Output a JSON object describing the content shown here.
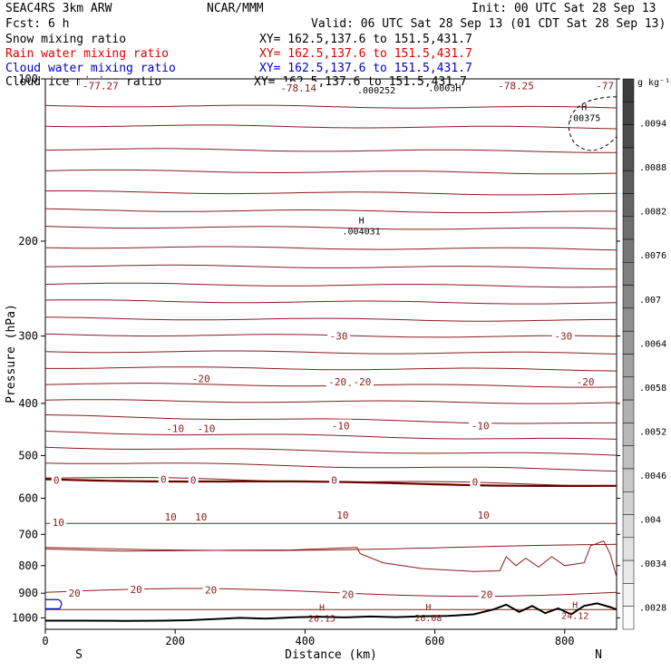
{
  "header": {
    "model": "SEAC4RS   3km ARW",
    "forecast": "Fcst:    6 h",
    "center": "NCAR/MMM",
    "init": "Init: 00 UTC Sat 28 Sep 13",
    "valid": "Valid: 06 UTC Sat 28 Sep 13 (01 CDT Sat 28 Sep 13)"
  },
  "fields": [
    {
      "name": "Snow mixing ratio",
      "xy": "XY= 162.5,137.6 to 151.5,431.7",
      "color": "#000000"
    },
    {
      "name": "Rain water mixing ratio",
      "xy": "XY= 162.5,137.6 to 151.5,431.7",
      "color": "#dd0000"
    },
    {
      "name": "Cloud water mixing ratio",
      "xy": "XY= 162.5,137.6 to 151.5,431.7",
      "color": "#0000cc"
    },
    {
      "name": "Cloud ice mixing ratio",
      "xy": "XY= 162.5,137.6 to 151.5,431.7",
      "color": "#000000"
    }
  ],
  "chart_data": {
    "type": "line",
    "title": "",
    "xlabel": "Distance (km)",
    "ylabel": "Pressure (hPa)",
    "xlim": [
      0,
      880
    ],
    "ylim": [
      1050,
      100
    ],
    "y_scale": "log",
    "grid": false,
    "x_ticks": [
      "0",
      "200",
      "400",
      "600",
      "800"
    ],
    "x_tick_values": [
      0,
      200,
      400,
      600,
      800
    ],
    "y_ticks": [
      "100",
      "200",
      "300",
      "400",
      "500",
      "600",
      "700",
      "800",
      "900",
      "1000"
    ],
    "y_tick_values": [
      100,
      200,
      300,
      400,
      500,
      600,
      700,
      800,
      900,
      1000
    ],
    "end_labels": {
      "left": "S",
      "right": "N"
    },
    "temperature_contour_color": "#8b1a1a",
    "terrain_color": "#000000",
    "contour_pressures_hPa": [
      112,
      122,
      135,
      148,
      162,
      175,
      188,
      205,
      222,
      240,
      258,
      278,
      298,
      320,
      343,
      368,
      395,
      422,
      452,
      482,
      514,
      548
    ],
    "contours": [
      {
        "label": "-77.27",
        "x": 85,
        "p": 103
      },
      {
        "label": "-78.14",
        "x": 390,
        "p": 104
      },
      {
        "label": "-78.25",
        "x": 725,
        "p": 103
      },
      {
        "label": "-77",
        "x": 862,
        "p": 103
      },
      {
        "label": "-30",
        "x": 452,
        "p": 300
      },
      {
        "label": "-30",
        "x": 798,
        "p": 300
      },
      {
        "label": "-20",
        "x": 240,
        "p": 360
      },
      {
        "label": "-20",
        "x": 450,
        "p": 365
      },
      {
        "label": "-20",
        "x": 488,
        "p": 365
      },
      {
        "label": "-20",
        "x": 832,
        "p": 365
      },
      {
        "label": "-10",
        "x": 200,
        "p": 445
      },
      {
        "label": "-10",
        "x": 248,
        "p": 445
      },
      {
        "label": "-10",
        "x": 455,
        "p": 440
      },
      {
        "label": "-10",
        "x": 670,
        "p": 440
      },
      {
        "label": "0",
        "x": 17,
        "p": 555
      },
      {
        "label": "0",
        "x": 182,
        "p": 553
      },
      {
        "label": "0",
        "x": 228,
        "p": 555
      },
      {
        "label": "0",
        "x": 445,
        "p": 555
      },
      {
        "label": "0",
        "x": 662,
        "p": 560
      },
      {
        "label": "10",
        "x": 20,
        "p": 665
      },
      {
        "label": "10",
        "x": 193,
        "p": 650
      },
      {
        "label": "10",
        "x": 240,
        "p": 650
      },
      {
        "label": "10",
        "x": 458,
        "p": 645
      },
      {
        "label": "10",
        "x": 675,
        "p": 645
      },
      {
        "label": "20",
        "x": 45,
        "p": 900
      },
      {
        "label": "20",
        "x": 140,
        "p": 885
      },
      {
        "label": "20",
        "x": 255,
        "p": 888
      },
      {
        "label": "20",
        "x": 466,
        "p": 905
      },
      {
        "label": "20",
        "x": 680,
        "p": 905
      }
    ],
    "extrema": [
      {
        "mark": "H",
        "value": ".00375",
        "x": 830,
        "p": 117
      },
      {
        "mark": "H",
        "value": ".004031",
        "x": 487,
        "p": 190
      },
      {
        "mark": "",
        "value": ".000252",
        "x": 510,
        "p": 104
      },
      {
        "mark": "",
        "value": ".0003H",
        "x": 615,
        "p": 103
      },
      {
        "mark": "H",
        "value": "26.15",
        "x": 426,
        "p": 992
      },
      {
        "mark": "H",
        "value": "26.08",
        "x": 590,
        "p": 990
      },
      {
        "mark": "H",
        "value": "24.12",
        "x": 816,
        "p": 982
      }
    ],
    "colorbar": {
      "unit": "g kg⁻¹",
      "labels": [
        ".0094",
        ".0088",
        ".0082",
        ".0076",
        ".007",
        ".0064",
        ".0058",
        ".0052",
        ".0046",
        ".004",
        ".0034",
        ".0028"
      ],
      "label_values": [
        0.0094,
        0.0088,
        0.0082,
        0.0076,
        0.007,
        0.0064,
        0.0058,
        0.0052,
        0.0046,
        0.004,
        0.0034,
        0.0028
      ],
      "range": [
        0.0025,
        0.01
      ]
    },
    "terrain": {
      "x": [
        0,
        60,
        120,
        180,
        220,
        260,
        300,
        340,
        380,
        420,
        460,
        500,
        540,
        580,
        620,
        660,
        690,
        710,
        730,
        750,
        770,
        790,
        810,
        830,
        850,
        870,
        880
      ],
      "p": [
        1012,
        1012,
        1013,
        1012,
        1010,
        1005,
        1000,
        1003,
        998,
        995,
        998,
        994,
        997,
        993,
        992,
        985,
        965,
        945,
        975,
        950,
        980,
        960,
        985,
        950,
        940,
        955,
        965
      ]
    }
  }
}
